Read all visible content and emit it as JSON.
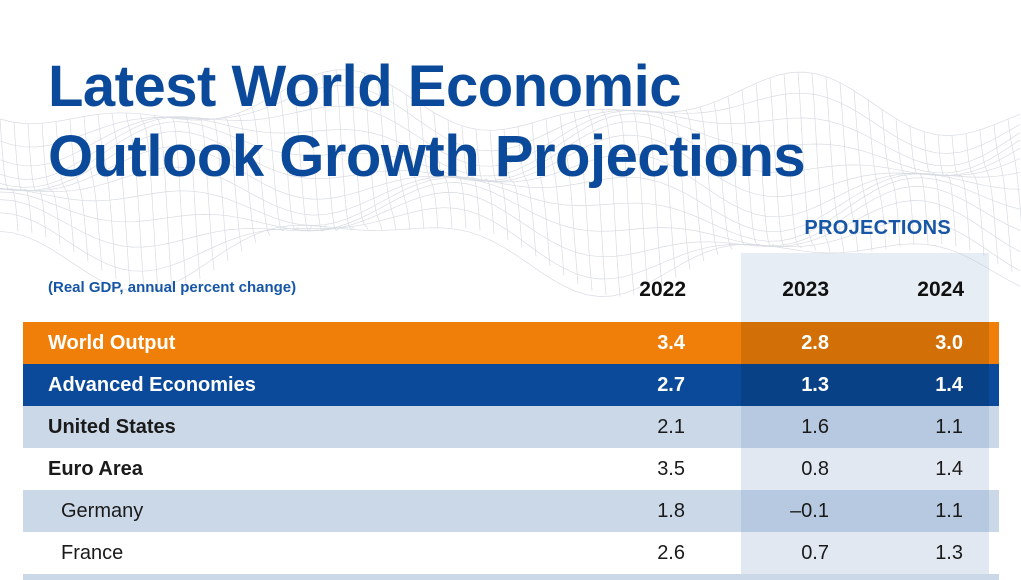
{
  "title_line1": "Latest World Economic",
  "title_line2": "Outlook Growth Projections",
  "projections_label": "PROJECTIONS",
  "chart_data": {
    "type": "table",
    "subtitle": "(Real GDP, annual percent change)",
    "columns": [
      "2022",
      "2023",
      "2024"
    ],
    "rows": [
      {
        "label": "World Output",
        "values": [
          "3.4",
          "2.8",
          "3.0"
        ]
      },
      {
        "label": "Advanced Economies",
        "values": [
          "2.7",
          "1.3",
          "1.4"
        ]
      },
      {
        "label": "United States",
        "values": [
          "2.1",
          "1.6",
          "1.1"
        ]
      },
      {
        "label": "Euro Area",
        "values": [
          "3.5",
          "0.8",
          "1.4"
        ]
      },
      {
        "label": "Germany",
        "values": [
          "1.8",
          "–0.1",
          "1.1"
        ]
      },
      {
        "label": "France",
        "values": [
          "2.6",
          "0.7",
          "1.3"
        ]
      }
    ]
  },
  "colors": {
    "title": "#0b4a9a",
    "world_output_row": "#f07f09",
    "advanced_economies_row": "#0b4a9a",
    "alternate_row": "#cad8e8"
  }
}
